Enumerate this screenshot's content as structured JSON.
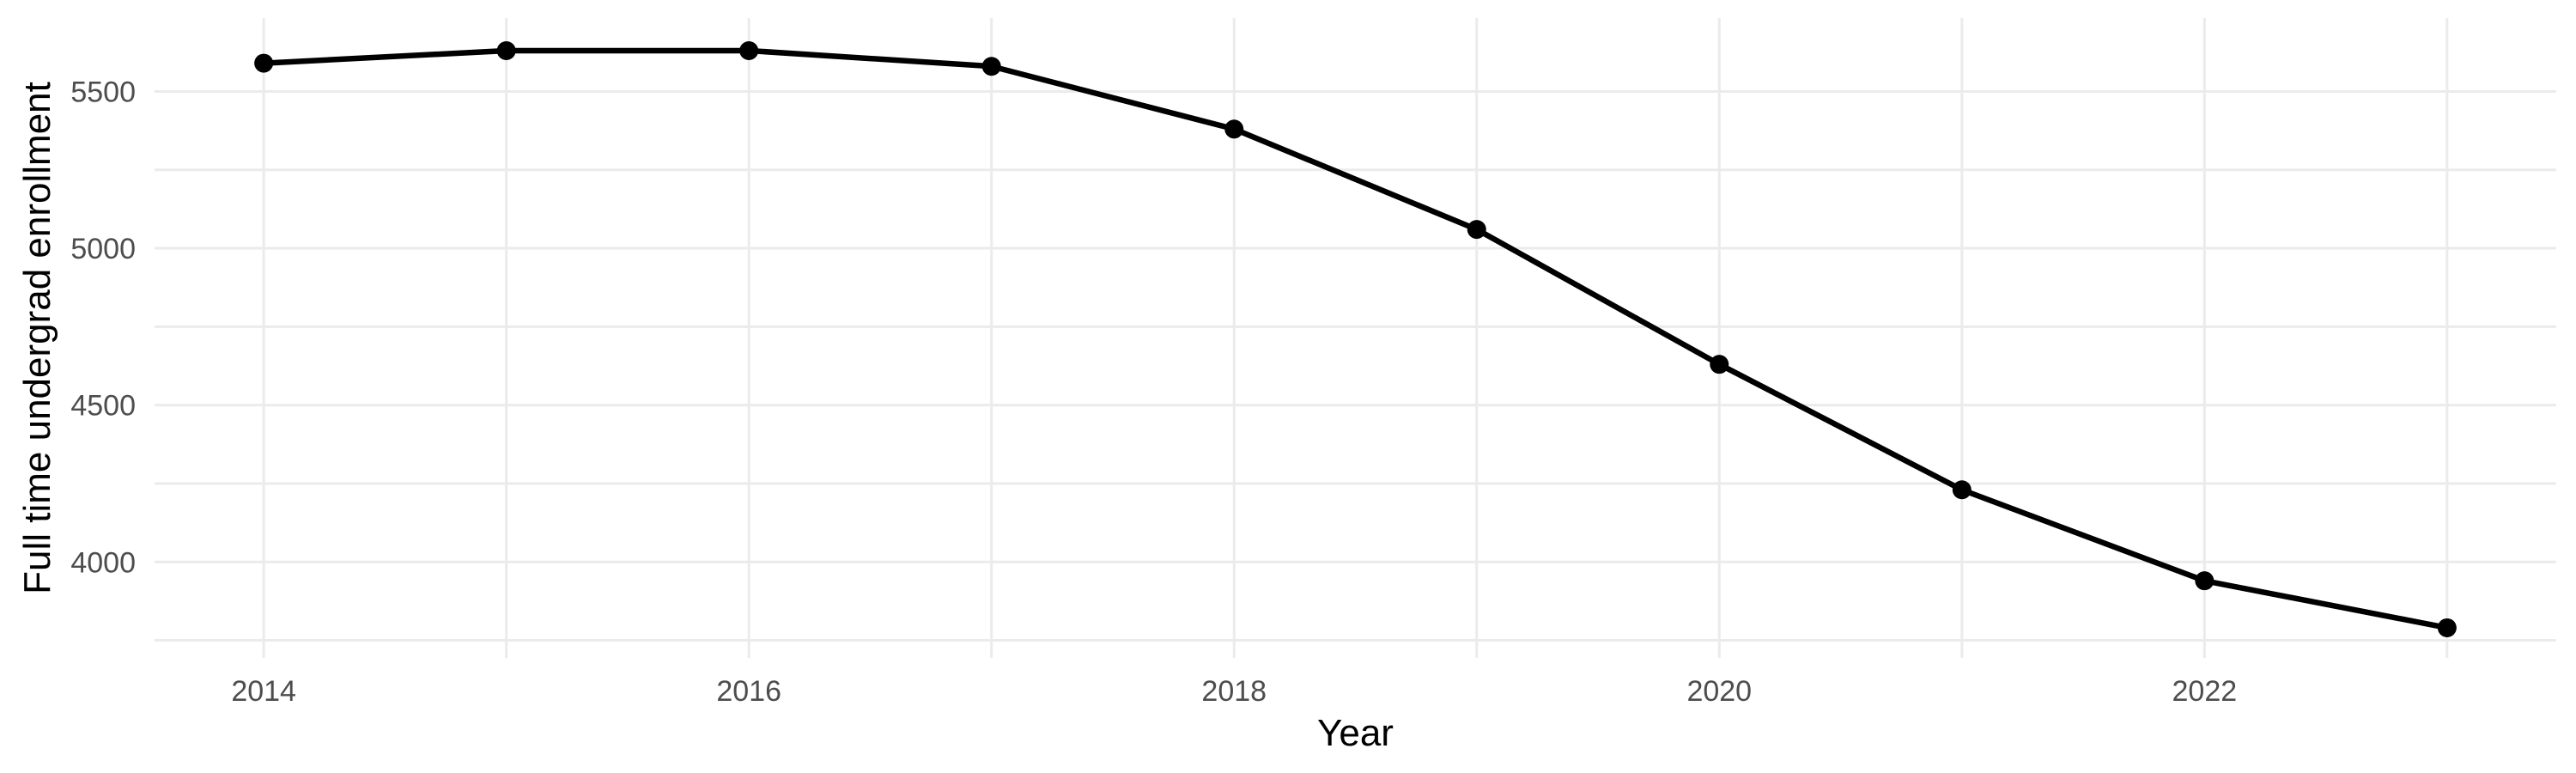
{
  "chart_data": {
    "type": "line",
    "title": "",
    "xlabel": "Year",
    "ylabel": "Full time undergrad enrollment",
    "series": [
      {
        "name": "Full time undergrad enrollment",
        "x": [
          2014,
          2015,
          2016,
          2017,
          2018,
          2019,
          2020,
          2021,
          2022,
          2023
        ],
        "values": [
          5590,
          5630,
          5630,
          5580,
          5380,
          5060,
          4630,
          4230,
          3940,
          3790
        ]
      }
    ],
    "x_tick_labels": [
      "2014",
      "2016",
      "2018",
      "2020",
      "2022"
    ],
    "x_major_ticks": [
      2014,
      2016,
      2018,
      2020,
      2022
    ],
    "x_minor_gridlines": [
      2015,
      2017,
      2019,
      2021,
      2023
    ],
    "y_tick_labels": [
      "4000",
      "4500",
      "5000",
      "5500"
    ],
    "y_major_ticks": [
      4000,
      4500,
      5000,
      5500
    ],
    "y_minor_gridlines": [
      3750,
      4250,
      4750,
      5250
    ],
    "xlim": [
      2013.55,
      2023.45
    ],
    "ylim": [
      3694,
      5734
    ],
    "grid": true,
    "legend": "none",
    "colors": {
      "background": "#ffffff",
      "gridline": "#ebebeb",
      "line": "#000000",
      "point": "#000000",
      "tick_text": "#4d4d4d",
      "title_text": "#000000"
    }
  }
}
